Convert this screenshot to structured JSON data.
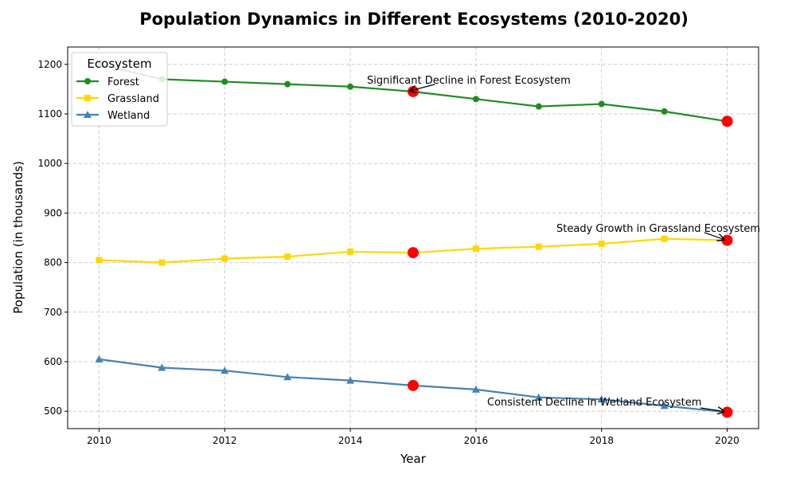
{
  "chart_data": {
    "type": "line",
    "title": "Population Dynamics in Different Ecosystems (2010-2020)",
    "xlabel": "Year",
    "ylabel": "Population (in thousands)",
    "x": [
      2010,
      2011,
      2012,
      2013,
      2014,
      2015,
      2016,
      2017,
      2018,
      2019,
      2020
    ],
    "xlim": [
      2009.5,
      2020.5
    ],
    "ylim": [
      465,
      1235
    ],
    "xticks": [
      "2010",
      "2012",
      "2014",
      "2016",
      "2018",
      "2020"
    ],
    "yticks": [
      "500",
      "600",
      "700",
      "800",
      "900",
      "1000",
      "1100",
      "1200"
    ],
    "grid": true,
    "legend": {
      "title": "Ecosystem",
      "placement": "top-left"
    },
    "series": [
      {
        "name": "Forest",
        "color": "#228b22",
        "marker": "circle",
        "values": [
          1200,
          1170,
          1165,
          1160,
          1155,
          1145,
          1130,
          1115,
          1120,
          1105,
          1085
        ]
      },
      {
        "name": "Grassland",
        "color": "#ffd700",
        "marker": "square",
        "values": [
          805,
          800,
          808,
          812,
          822,
          820,
          828,
          832,
          838,
          848,
          845
        ]
      },
      {
        "name": "Wetland",
        "color": "#4682b4",
        "marker": "triangle",
        "values": [
          605,
          588,
          582,
          569,
          562,
          552,
          544,
          528,
          524,
          511,
          498
        ]
      }
    ],
    "highlights": [
      {
        "x": 2015,
        "y": 1145,
        "color": "#ff0000"
      },
      {
        "x": 2020,
        "y": 1085,
        "color": "#ff0000"
      },
      {
        "x": 2015,
        "y": 820,
        "color": "#ff0000"
      },
      {
        "x": 2020,
        "y": 845,
        "color": "#ff0000"
      },
      {
        "x": 2015,
        "y": 552,
        "color": "#ff0000"
      },
      {
        "x": 2020,
        "y": 498,
        "color": "#ff0000"
      }
    ],
    "annotations": [
      {
        "text": "Significant Decline in Forest Ecosystem",
        "x": 2015,
        "y": 1145
      },
      {
        "text": "Steady Growth in Grassland Ecosystem",
        "x": 2020,
        "y": 845
      },
      {
        "text": "Consistent Decline in Wetland Ecosystem",
        "x": 2020,
        "y": 498
      }
    ]
  }
}
